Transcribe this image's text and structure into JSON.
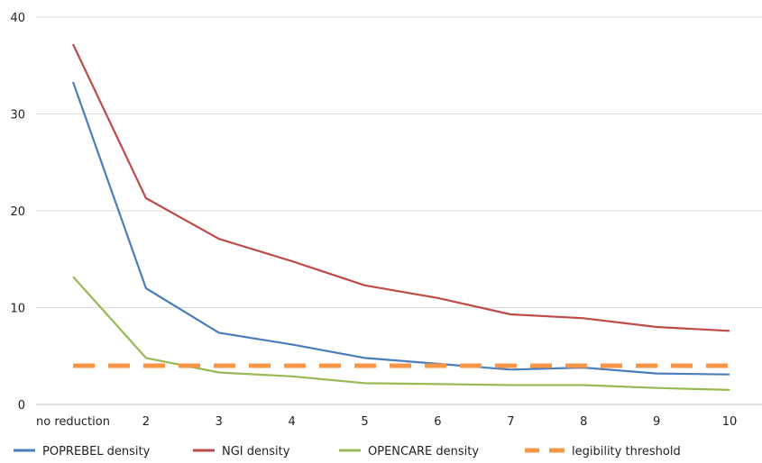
{
  "chart_data": {
    "type": "line",
    "categories": [
      "no reduction",
      "2",
      "3",
      "4",
      "5",
      "6",
      "7",
      "8",
      "9",
      "10"
    ],
    "ylim": [
      0,
      40
    ],
    "yticks": [
      "0",
      "10",
      "20",
      "30",
      "40"
    ],
    "grid": true,
    "legend_position": "bottom",
    "series": [
      {
        "name": "POPREBEL density",
        "color": "#4a7ebb",
        "dashed": false,
        "values": [
          33.3,
          12.0,
          7.4,
          6.2,
          4.8,
          4.2,
          3.6,
          3.8,
          3.2,
          3.1
        ]
      },
      {
        "name": "NGI density",
        "color": "#be4b48",
        "dashed": false,
        "values": [
          37.2,
          21.3,
          17.1,
          14.8,
          12.3,
          11.0,
          9.3,
          8.9,
          8.0,
          7.6
        ]
      },
      {
        "name": "OPENCARE density",
        "color": "#98b954",
        "dashed": false,
        "values": [
          13.2,
          4.8,
          3.3,
          2.9,
          2.2,
          2.1,
          2.0,
          2.0,
          1.7,
          1.5
        ]
      },
      {
        "name": "legibility threshold",
        "color": "#f79646",
        "dashed": true,
        "values": [
          4,
          4,
          4,
          4,
          4,
          4,
          4,
          4,
          4,
          4
        ]
      }
    ]
  }
}
